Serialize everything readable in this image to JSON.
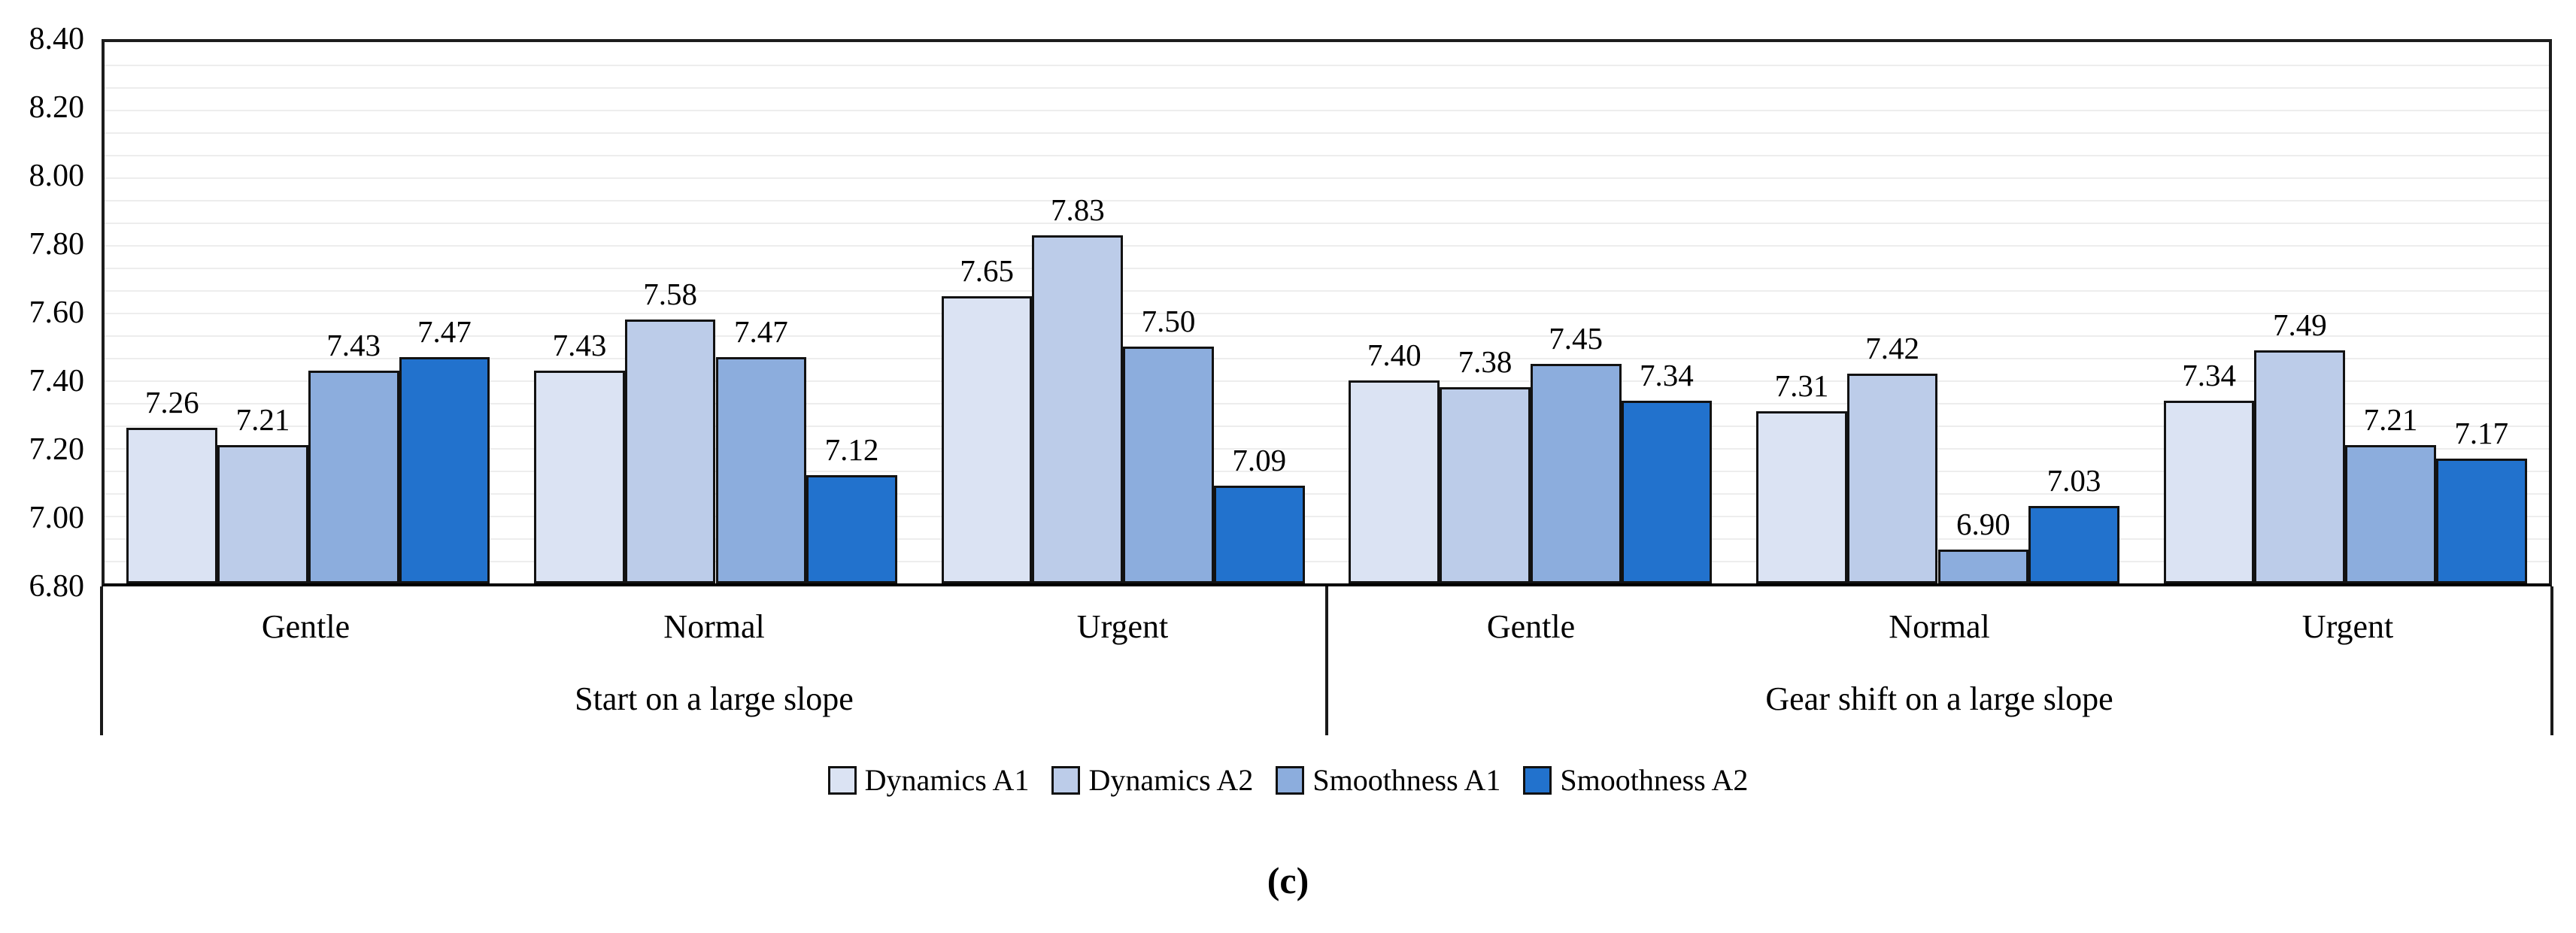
{
  "caption": "(c)",
  "chart_data": {
    "type": "bar",
    "title": "",
    "xlabel": "",
    "ylabel": "",
    "ylim": [
      6.8,
      8.4
    ],
    "y_major_unit": 0.2,
    "y_tick_labels": [
      "8.40",
      "8.20",
      "8.00",
      "7.80",
      "7.60",
      "7.40",
      "7.20",
      "7.00",
      "6.80"
    ],
    "y_minor_divisions": 24,
    "grid": "horizontal-light",
    "legend_position": "bottom",
    "data_labels": true,
    "bar_outline_color": "#121212",
    "groups": [
      {
        "label": "Start on a large slope",
        "categories": [
          "Gentle",
          "Normal",
          "Urgent"
        ]
      },
      {
        "label": "Gear shift on a large slope",
        "categories": [
          "Gentle",
          "Normal",
          "Urgent"
        ]
      }
    ],
    "series": [
      {
        "name": "Dynamics A1",
        "color": "#DBE3F3",
        "values": [
          7.26,
          7.43,
          7.65,
          7.4,
          7.31,
          7.34
        ]
      },
      {
        "name": "Dynamics A2",
        "color": "#BCCCE9",
        "values": [
          7.21,
          7.58,
          7.83,
          7.38,
          7.42,
          7.49
        ]
      },
      {
        "name": "Smoothness A1",
        "color": "#8CADDD",
        "values": [
          7.43,
          7.47,
          7.5,
          7.45,
          6.9,
          7.21
        ]
      },
      {
        "name": "Smoothness A2",
        "color": "#2272CD",
        "values": [
          7.47,
          7.12,
          7.09,
          7.34,
          7.03,
          7.17
        ]
      }
    ]
  }
}
